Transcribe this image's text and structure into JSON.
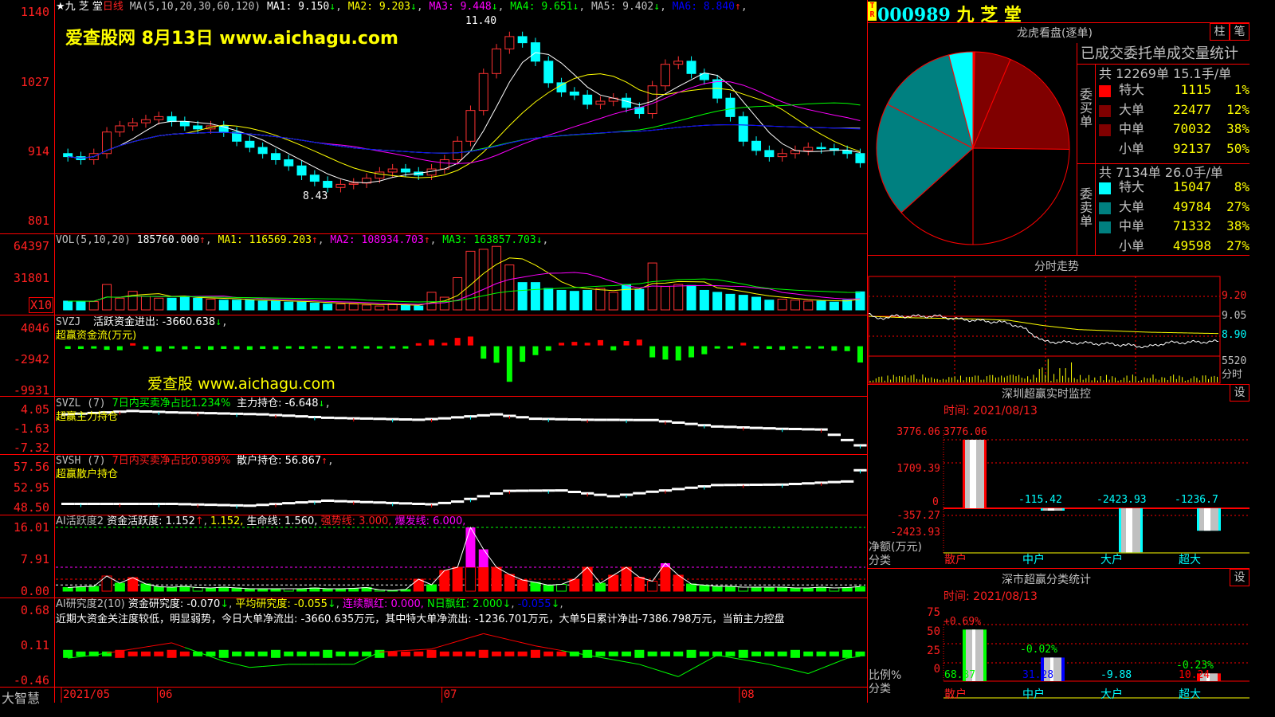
{
  "main": {
    "stock_name": "★九 芝 堂",
    "period": "日线",
    "ma_params": "MA(5,10,20,30,60,120)",
    "ma": [
      {
        "label": "MA1: 9.150",
        "arrow": "↓",
        "color": "#ffffff"
      },
      {
        "label": "MA2: 9.203",
        "arrow": "↓",
        "color": "#ffff00"
      },
      {
        "label": "MA3: 9.448",
        "arrow": "↓",
        "color": "#ff00ff"
      },
      {
        "label": "MA4: 9.651",
        "arrow": "↓",
        "color": "#00ff00"
      },
      {
        "label": "MA5: 9.402",
        "arrow": "↓",
        "color": "#c0c0c0"
      },
      {
        "label": "MA6: 8.840",
        "arrow": "↑",
        "color": "#0000ff"
      }
    ],
    "y_ticks": [
      "1140",
      "1027",
      "914",
      "801"
    ],
    "high_label": "11.40",
    "low_label": "8.43",
    "watermark": "爱查股网   8月13日   www.aichagu.com",
    "closes": [
      9.05,
      9.0,
      9.1,
      9.45,
      9.55,
      9.6,
      9.65,
      9.7,
      9.62,
      9.55,
      9.5,
      9.55,
      9.45,
      9.3,
      9.2,
      9.1,
      9.0,
      8.9,
      8.75,
      8.65,
      8.55,
      8.6,
      8.62,
      8.7,
      8.8,
      8.85,
      8.8,
      8.75,
      8.85,
      9.0,
      9.3,
      9.8,
      10.4,
      10.8,
      11.0,
      10.9,
      10.6,
      10.25,
      10.1,
      10.05,
      9.9,
      9.95,
      10.0,
      9.85,
      9.75,
      10.2,
      10.55,
      10.6,
      10.4,
      10.3,
      10.0,
      9.7,
      9.3,
      9.15,
      9.05,
      9.1,
      9.15,
      9.2,
      9.18,
      9.15,
      9.1,
      8.95
    ]
  },
  "volume": {
    "title": "VOL(5,10,20)",
    "value": "185760.000",
    "ma": [
      {
        "label": "MA1: 116569.203",
        "arrow": "↑",
        "color": "#ffff00"
      },
      {
        "label": "MA2: 108934.703",
        "arrow": "↑",
        "color": "#ff00ff"
      },
      {
        "label": "MA3: 163857.703",
        "arrow": "↓",
        "color": "#00ff00"
      }
    ],
    "y_ticks": [
      "64397",
      "31801"
    ],
    "unit": "X10",
    "values": [
      9000,
      9000,
      8500,
      26000,
      12000,
      19000,
      14000,
      12000,
      12000,
      14000,
      12000,
      11000,
      10000,
      10000,
      10000,
      9000,
      9000,
      8000,
      8000,
      7000,
      6000,
      6000,
      6000,
      5000,
      4000,
      6000,
      5000,
      4000,
      18000,
      13000,
      33000,
      60000,
      62000,
      65000,
      46000,
      28000,
      28000,
      22000,
      20000,
      19000,
      20000,
      22000,
      18000,
      26000,
      21000,
      48000,
      24000,
      26000,
      25000,
      20000,
      18000,
      16000,
      15000,
      13000,
      10000,
      11000,
      10000,
      9000,
      9000,
      8000,
      10000,
      18500
    ]
  },
  "svzj": {
    "title": "SVZJ",
    "label": "活跃资金进出: -3660.638",
    "arrow": "↓",
    "subtitle": "超赢资金流(万元)",
    "y_ticks": [
      "4046",
      "-2942",
      "-9931"
    ],
    "watermark": "爱查股 www.aichagu.com",
    "values": [
      -600,
      -600,
      -500,
      -800,
      -900,
      500,
      -700,
      -1200,
      -500,
      -700,
      -600,
      -800,
      -600,
      -700,
      -800,
      -600,
      -700,
      -500,
      -600,
      -500,
      -400,
      -500,
      -400,
      -500,
      -300,
      -300,
      -400,
      500,
      1300,
      600,
      1700,
      2000,
      -2800,
      -3700,
      -8000,
      -3500,
      -2000,
      -1000,
      600,
      800,
      600,
      1200,
      -900,
      1000,
      1300,
      -2500,
      -3000,
      -3200,
      -2500,
      -1800,
      -400,
      -300,
      600,
      -300,
      -600,
      -800,
      -500,
      -400,
      -300,
      -1000,
      -1100,
      -3660
    ]
  },
  "svzl": {
    "title": "SVZL (7)",
    "ratio": "7日内买卖净占比1.234%",
    "label": "主力持仓: -6.648",
    "arrow": "↓",
    "subtitle": "超赢主力持仓",
    "y_ticks": [
      "4.05",
      "-1.63",
      "-7.32"
    ],
    "points": [
      [
        0,
        2.6
      ],
      [
        5,
        3.6
      ],
      [
        8,
        3.2
      ],
      [
        15,
        2.6
      ],
      [
        20,
        1.6
      ],
      [
        27,
        1.0
      ],
      [
        29,
        1.4
      ],
      [
        33,
        2.6
      ],
      [
        36,
        1.3
      ],
      [
        40,
        1.0
      ],
      [
        45,
        0.9
      ],
      [
        50,
        -1.0
      ],
      [
        55,
        -1.7
      ],
      [
        58,
        -1.9
      ],
      [
        61,
        -6.6
      ]
    ]
  },
  "svsh": {
    "title": "SVSH (7)",
    "ratio": "7日内买卖净占比0.989%",
    "label": "散户持仓: 56.867",
    "arrow": "↑",
    "subtitle": "超赢散户持仓",
    "y_ticks": [
      "57.56",
      "52.95",
      "48.50"
    ],
    "points": [
      [
        0,
        49.3
      ],
      [
        8,
        49.3
      ],
      [
        14,
        48.9
      ],
      [
        20,
        50.0
      ],
      [
        28,
        49.2
      ],
      [
        30,
        49.8
      ],
      [
        34,
        52.2
      ],
      [
        38,
        52.3
      ],
      [
        42,
        51.0
      ],
      [
        45,
        52.0
      ],
      [
        50,
        53.5
      ],
      [
        55,
        53.6
      ],
      [
        60,
        54.3
      ],
      [
        61,
        56.8
      ]
    ]
  },
  "ai1": {
    "title": "AI活跃度2",
    "label1": "资金活跃度: 1.152",
    "arrow": "↑",
    "label2": "1.152,",
    "label3": "生命线: 1.560,",
    "label4": "强势线: 3.000,",
    "label5": "爆发线: 6.000,",
    "y_ticks": [
      "16.01",
      "7.91",
      "0.00"
    ],
    "values": [
      0.9,
      1.1,
      1.2,
      3.8,
      2.0,
      3.4,
      1.8,
      1.1,
      1.0,
      1.2,
      0.9,
      0.8,
      1.0,
      0.8,
      0.6,
      0.6,
      0.6,
      0.6,
      0.6,
      0.8,
      0.6,
      0.6,
      0.7,
      0.9,
      0.3,
      0.2,
      0.4,
      3.0,
      1.6,
      5.2,
      6.0,
      16.0,
      10.5,
      6.0,
      4.2,
      2.8,
      2.2,
      1.5,
      1.7,
      3.0,
      6.0,
      2.0,
      4.0,
      6.0,
      3.5,
      2.5,
      7.0,
      4.0,
      1.8,
      1.5,
      1.2,
      1.2,
      1.0,
      1.0,
      1.0,
      1.0,
      0.8,
      0.8,
      1.0,
      0.8,
      0.9,
      1.15
    ]
  },
  "ai2": {
    "title": "AI研究度2(10)",
    "label1": "资金研究度: -0.070",
    "label2": "平均研究度: -0.055",
    "label3": "连续飘红: 0.000,",
    "label4": "N日飘红: 2.000",
    "label5": "-0.055",
    "comment": "近期大资金关注度较低，明显弱势，今日大单净流出: -3660.635万元，其中特大单净流出: -1236.701万元，大单5日累计净出-7386.798万元，当前主力控盘",
    "y_ticks": [
      "0.68",
      "0.11",
      "-0.46"
    ],
    "points": [
      [
        0,
        -0.1
      ],
      [
        2,
        -0.05
      ],
      [
        5,
        0.05
      ],
      [
        8,
        0.15
      ],
      [
        12,
        -0.15
      ],
      [
        14,
        -0.25
      ],
      [
        17,
        -0.2
      ],
      [
        22,
        -0.2
      ],
      [
        24,
        0.0
      ],
      [
        28,
        0.05
      ],
      [
        32,
        0.3
      ],
      [
        36,
        0.1
      ],
      [
        40,
        -0.05
      ],
      [
        44,
        -0.2
      ],
      [
        47,
        -0.4
      ],
      [
        50,
        -0.05
      ],
      [
        54,
        -0.2
      ],
      [
        57,
        -0.35
      ],
      [
        60,
        -0.1
      ],
      [
        61,
        -0.07
      ]
    ]
  },
  "xaxis": {
    "labels": [
      {
        "text": "2021/05",
        "index": 0
      },
      {
        "text": "06",
        "index": 7.4
      },
      {
        "text": "07",
        "index": 29.3
      },
      {
        "text": "08",
        "index": 52.2
      }
    ]
  },
  "footer": {
    "brand": "大智慧"
  },
  "right": {
    "code": "000989",
    "name": "九 芝 堂",
    "tr_badge": "TR",
    "dragon": {
      "title": "龙虎看盘(逐单)",
      "tab1": "柱",
      "tab2": "笔",
      "stats_title": "已成交委托单成交量统计",
      "buy_group": "委买单",
      "sell_group": "委卖单",
      "buy_summary": "共 12269单 15.1手/单",
      "sell_summary": "共 7134单 26.0手/单",
      "buy": [
        {
          "label": "特大",
          "value": "1115",
          "pct": "1%",
          "color": "#ff0000"
        },
        {
          "label": "大单",
          "value": "22477",
          "pct": "12%",
          "color": "#800000"
        },
        {
          "label": "中单",
          "value": "70032",
          "pct": "38%",
          "color": "#800000"
        },
        {
          "label": "小单",
          "value": "92137",
          "pct": "50%",
          "color": "#000000"
        }
      ],
      "sell": [
        {
          "label": "特大",
          "value": "15047",
          "pct": "8%",
          "color": "#00ffff"
        },
        {
          "label": "大单",
          "value": "49784",
          "pct": "27%",
          "color": "#008080"
        },
        {
          "label": "中单",
          "value": "71332",
          "pct": "38%",
          "color": "#008080"
        },
        {
          "label": "小单",
          "value": "49598",
          "pct": "27%",
          "color": "#000000"
        }
      ]
    },
    "intraday": {
      "title": "分时走势",
      "y_ticks": [
        "9.20",
        "9.05",
        "8.90"
      ],
      "vol_tick": "5520",
      "vol_label": "分时",
      "price_points": [
        [
          0,
          9.07
        ],
        [
          0.02,
          9.03
        ],
        [
          0.07,
          9.05
        ],
        [
          0.2,
          9.05
        ],
        [
          0.25,
          9.03
        ],
        [
          0.35,
          9.01
        ],
        [
          0.4,
          9.0
        ],
        [
          0.45,
          8.95
        ],
        [
          0.5,
          8.86
        ],
        [
          0.6,
          8.85
        ],
        [
          0.7,
          8.84
        ],
        [
          0.8,
          8.82
        ],
        [
          0.85,
          8.85
        ],
        [
          1,
          8.86
        ]
      ],
      "avg_points": [
        [
          0,
          9.05
        ],
        [
          0.1,
          9.04
        ],
        [
          0.3,
          9.03
        ],
        [
          0.4,
          9.02
        ],
        [
          0.5,
          8.98
        ],
        [
          0.6,
          8.95
        ],
        [
          0.8,
          8.93
        ],
        [
          1,
          8.92
        ]
      ]
    },
    "sz_monitor": {
      "title": "深圳超赢实时监控",
      "settings": "设",
      "time": "时间: 2021/08/13",
      "y_ticks": [
        "3776.06",
        "1709.39",
        "-357.27",
        "-2423.93"
      ],
      "zero": "0",
      "unit": "净额(万元)",
      "cat_label": "分类",
      "bars": [
        {
          "cat": "散户",
          "value": 3776.06,
          "label": "3776.06",
          "cat_color": "#ff2020",
          "label_color": "#ff2020"
        },
        {
          "cat": "中户",
          "value": -115.42,
          "label": "-115.42",
          "cat_color": "#00ffff",
          "label_color": "#00ffff"
        },
        {
          "cat": "大户",
          "value": -2423.93,
          "label": "-2423.93",
          "cat_color": "#00ffff",
          "label_color": "#00ffff"
        },
        {
          "cat": "超大",
          "value": -1236.7,
          "label": "-1236.7",
          "cat_color": "#00ffff",
          "label_color": "#00ffff"
        }
      ]
    },
    "sz_class": {
      "title": "深市超赢分类统计",
      "settings": "设",
      "time": "时间: 2021/08/13",
      "y_ticks": [
        "75",
        "50",
        "25",
        "0"
      ],
      "unit": "比例%",
      "cat_label": "分类",
      "bars": [
        {
          "cat": "散户",
          "value": 68.37,
          "label": "68.37",
          "change": "+0.69%",
          "color": "#00ff00",
          "cat_color": "#ff2020",
          "change_color": "#ff2020"
        },
        {
          "cat": "中户",
          "value": 31.28,
          "label": "31.28",
          "change": "-0.02%",
          "color": "#0000ff",
          "cat_color": "#00ffff",
          "change_color": "#00ff00"
        },
        {
          "cat": "大户",
          "value": -9.88,
          "label": "-9.88",
          "change": "",
          "color": "#00ffff",
          "cat_color": "#00ffff",
          "change_color": "#00ff00"
        },
        {
          "cat": "超大",
          "value": 10.24,
          "label": "10.24",
          "change": "-0.23%",
          "color": "#ff0000",
          "cat_color": "#00ffff",
          "change_color": "#00ff00"
        }
      ]
    }
  }
}
